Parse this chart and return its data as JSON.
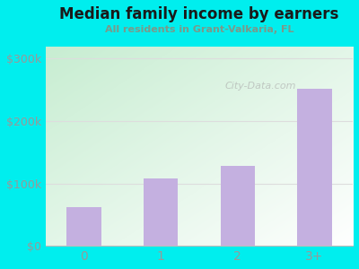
{
  "title": "Median family income by earners",
  "subtitle": "All residents in Grant-Valkaria, FL",
  "categories": [
    "0",
    "1",
    "2",
    "3+"
  ],
  "values": [
    62000,
    108000,
    128000,
    252000
  ],
  "bar_color": "#c4b0e0",
  "ylim": [
    0,
    320000
  ],
  "yticks": [
    0,
    100000,
    200000,
    300000
  ],
  "ytick_labels": [
    "$0",
    "$100k",
    "$200k",
    "$300k"
  ],
  "background_outer": "#00EEEE",
  "background_inner_left": "#c8ecd4",
  "background_inner_right": "#f5faf5",
  "title_color": "#1a1a1a",
  "subtitle_color": "#7a9a8a",
  "tick_color": "#999999",
  "grid_color": "#dddddd",
  "watermark": "City-Data.com"
}
